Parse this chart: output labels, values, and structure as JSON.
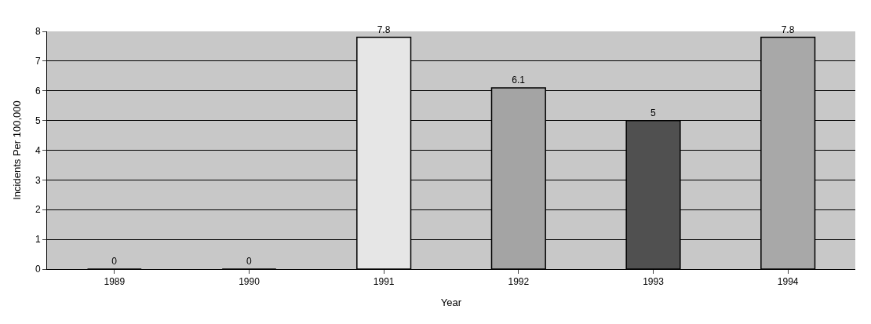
{
  "chart_data": {
    "type": "bar",
    "xlabel": "Year",
    "ylabel": "Incidents Per 100,000",
    "categories": [
      "1989",
      "1990",
      "1991",
      "1992",
      "1993",
      "1994"
    ],
    "values": [
      0,
      0,
      7.8,
      6.1,
      5,
      7.8
    ],
    "colors": [
      "#000000",
      "#000000",
      "#e6e6e6",
      "#a4a4a4",
      "#505050",
      "#a8a8a8"
    ],
    "ylim": [
      0,
      8
    ],
    "yticks": [
      0,
      1,
      2,
      3,
      4,
      5,
      6,
      7,
      8
    ],
    "grid": "y",
    "data_labels": true
  }
}
